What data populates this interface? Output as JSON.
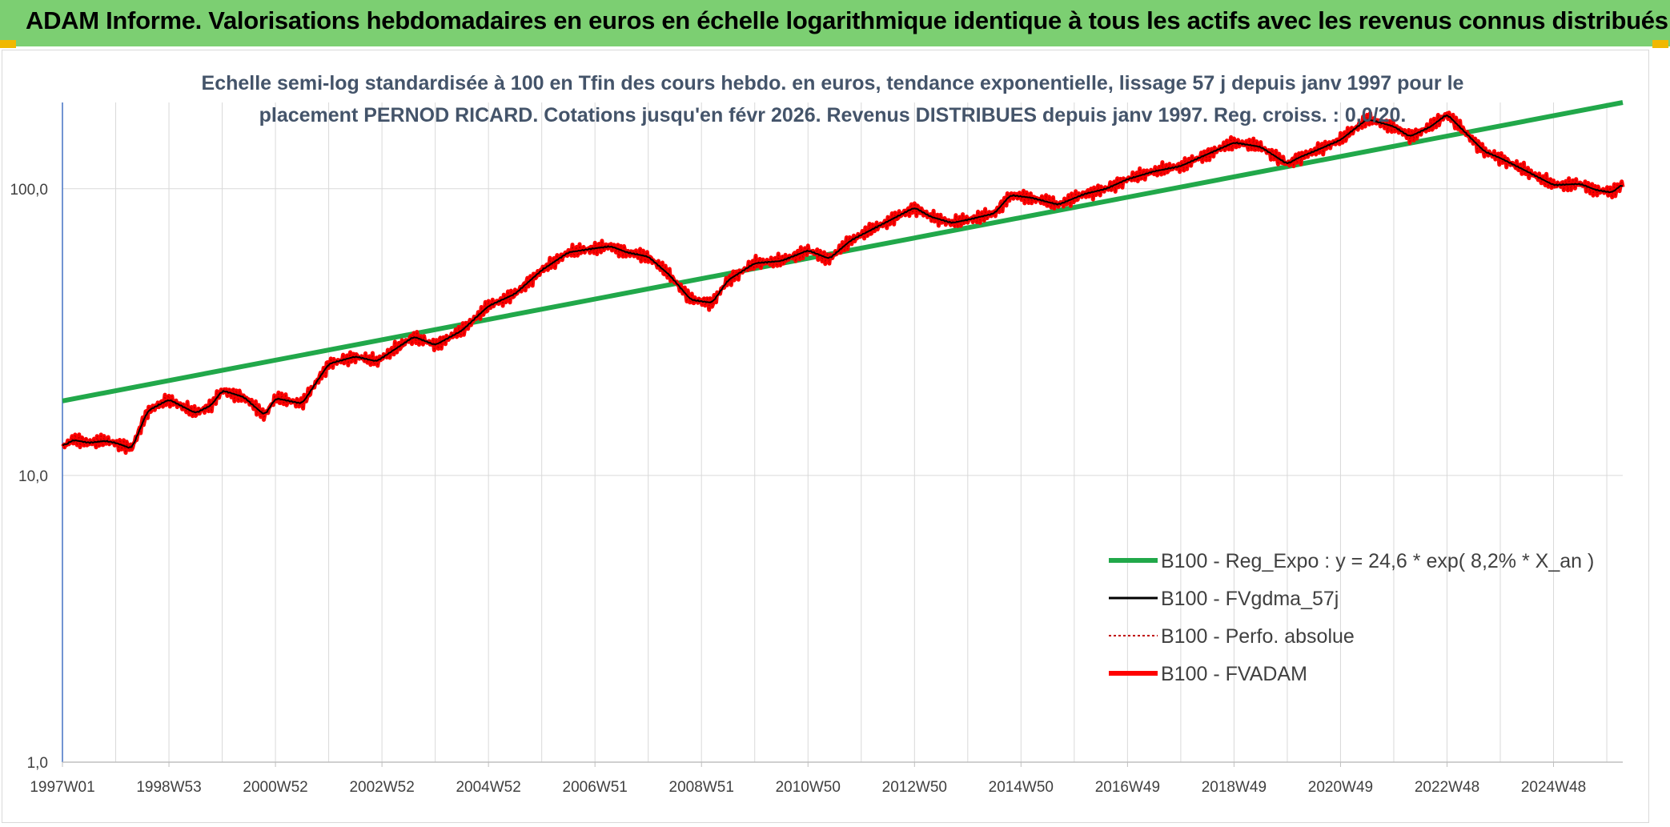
{
  "header": {
    "title": "ADAM Informe. Valorisations hebdomadaires en euros en échelle logarithmique identique à tous les actifs avec les revenus connus distribués"
  },
  "colors": {
    "banner": "#7ccf72",
    "regression": "#21a84a",
    "fvgdma": "#000000",
    "perfo": "#c00000",
    "fvadam": "#ff0000",
    "grid": "#d9d9d9"
  },
  "chart_data": {
    "type": "line",
    "title_lines": [
      "Echelle semi-log standardisée à 100 en Tfin des cours hebdo. en euros, tendance exponentielle, lissage 57 j depuis janv 1997 pour le",
      "placement PERNOD RICARD. Cotations jusqu'en févr 2026. Revenus DISTRIBUES depuis janv 1997. Reg. croiss. : 0,0/20."
    ],
    "y_scale": "log",
    "ylim": [
      1,
      200
    ],
    "y_ticks": [
      {
        "value": 1,
        "label": "1,0"
      },
      {
        "value": 10,
        "label": "10,0"
      },
      {
        "value": 100,
        "label": "100,0"
      }
    ],
    "xlim": [
      1997.0,
      2026.3
    ],
    "x_ticks": [
      {
        "value": 1997.0,
        "label": "1997W01"
      },
      {
        "value": 1999.0,
        "label": "1998W53"
      },
      {
        "value": 2001.0,
        "label": "2000W52"
      },
      {
        "value": 2003.0,
        "label": "2002W52"
      },
      {
        "value": 2005.0,
        "label": "2004W52"
      },
      {
        "value": 2007.0,
        "label": "2006W51"
      },
      {
        "value": 2009.0,
        "label": "2008W51"
      },
      {
        "value": 2011.0,
        "label": "2010W50"
      },
      {
        "value": 2013.0,
        "label": "2012W50"
      },
      {
        "value": 2015.0,
        "label": "2014W50"
      },
      {
        "value": 2017.0,
        "label": "2016W49"
      },
      {
        "value": 2019.0,
        "label": "2018W49"
      },
      {
        "value": 2021.0,
        "label": "2020W49"
      },
      {
        "value": 2023.0,
        "label": "2022W48"
      },
      {
        "value": 2025.0,
        "label": "2024W48"
      }
    ],
    "grid": true,
    "legend_position": "bottom-right",
    "legend": [
      {
        "name": "B100 - Reg_Expo : y = 24,6 * exp( 8,2% *  X_an )",
        "series": "reg"
      },
      {
        "name": "B100 - FVgdma_57j",
        "series": "fvgdma"
      },
      {
        "name": "B100 - Perfo. absolue",
        "series": "perfo"
      },
      {
        "name": "B100 - FVADAM",
        "series": "fvadam"
      }
    ],
    "series": [
      {
        "name": "B100 - Reg_Expo : y = 24,6 * exp( 8,2% *  X_an )",
        "id": "reg",
        "x": [
          1997.0,
          2026.3
        ],
        "values": [
          18.2,
          200.0
        ]
      },
      {
        "name": "B100 - FVADAM",
        "id": "fvadam",
        "x": [
          1997.0,
          1997.2,
          1997.5,
          1997.8,
          1998.0,
          1998.3,
          1998.6,
          1999.0,
          1999.5,
          1999.8,
          2000.0,
          2000.4,
          2000.8,
          2001.0,
          2001.5,
          2002.0,
          2002.5,
          2002.9,
          2003.3,
          2003.6,
          2004.0,
          2004.5,
          2005.0,
          2005.5,
          2006.0,
          2006.5,
          2007.0,
          2007.3,
          2007.6,
          2008.0,
          2008.4,
          2008.8,
          2009.2,
          2009.5,
          2010.0,
          2010.5,
          2011.0,
          2011.4,
          2011.8,
          2012.0,
          2012.5,
          2013.0,
          2013.3,
          2013.7,
          2014.0,
          2014.5,
          2014.8,
          2015.2,
          2015.7,
          2016.2,
          2016.6,
          2017.0,
          2017.5,
          2018.0,
          2018.5,
          2019.0,
          2019.5,
          2020.0,
          2020.2,
          2020.5,
          2021.0,
          2021.5,
          2022.0,
          2022.3,
          2022.7,
          2023.0,
          2023.3,
          2023.7,
          2024.0,
          2024.5,
          2025.0,
          2025.5,
          2025.8,
          2026.1,
          2026.3
        ],
        "values": [
          12.6,
          13.3,
          13.0,
          13.2,
          13.0,
          12.4,
          16.8,
          18.4,
          16.5,
          17.6,
          19.8,
          18.8,
          16.2,
          18.6,
          17.8,
          24.5,
          26.0,
          25.0,
          28.0,
          30.5,
          28.5,
          32.0,
          39.0,
          43.0,
          52.0,
          60.0,
          62.0,
          63.0,
          60.0,
          58.0,
          50.0,
          41.0,
          40.0,
          48.0,
          55.0,
          56.0,
          61.0,
          57.0,
          66.0,
          69.0,
          77.0,
          86.0,
          80.0,
          76.0,
          78.0,
          82.0,
          95.0,
          93.0,
          88.0,
          96.0,
          100.0,
          108.0,
          115.0,
          120.0,
          132.0,
          145.0,
          140.0,
          122.0,
          128.0,
          135.0,
          148.0,
          175.0,
          165.0,
          152.0,
          165.0,
          182.0,
          160.0,
          135.0,
          128.0,
          115.0,
          103.0,
          104.0,
          99.0,
          97.0,
          104.0
        ]
      }
    ]
  }
}
